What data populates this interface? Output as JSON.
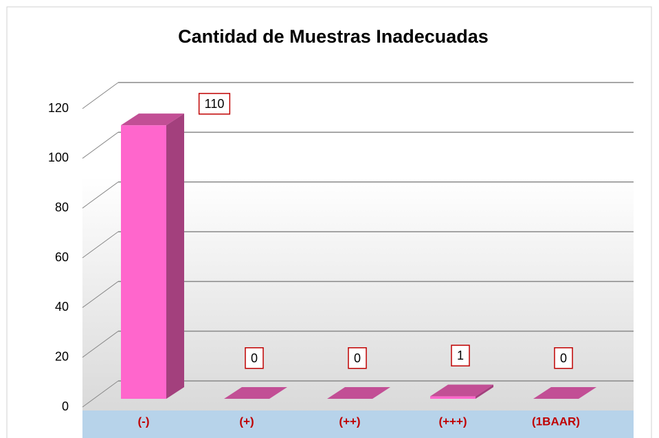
{
  "chart_data": {
    "type": "bar3d",
    "title": "Cantidad de Muestras Inadecuadas",
    "categories": [
      "(-)",
      "(+)",
      "(++)",
      "(+++)",
      "(1BAAR)"
    ],
    "values": [
      110,
      0,
      0,
      1,
      0
    ],
    "color": "#ff66cc",
    "ylim": [
      0,
      120
    ],
    "yticks": [
      0,
      20,
      40,
      60,
      80,
      100,
      120
    ],
    "grid": true
  }
}
